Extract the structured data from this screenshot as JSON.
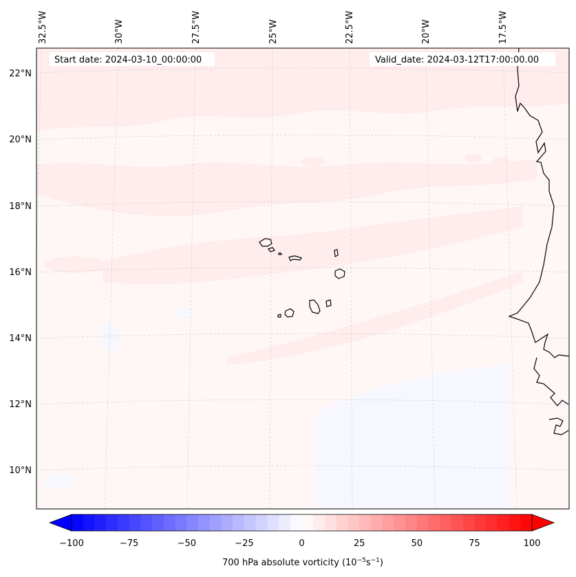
{
  "header": {
    "start_date": "Start date: 2024-03-10_00:00:00",
    "valid_date": "Valid_date: 2024-03-12T17:00:00.00"
  },
  "map": {
    "lon_labels": [
      "32.5°W",
      "30°W",
      "27.5°W",
      "25°W",
      "22.5°W",
      "20°W",
      "17.5°W"
    ],
    "lat_labels": [
      "22°N",
      "20°N",
      "18°N",
      "16°N",
      "14°N",
      "12°N",
      "10°N"
    ],
    "gridlines": "dashed-gray",
    "field_colors": {
      "light_red": "#ffeced",
      "faint_red": "#fff6f6",
      "faint_blue": "#f6f7ff"
    }
  },
  "colorbar": {
    "ticks": [
      "−100",
      "−75",
      "−50",
      "−25",
      "0",
      "25",
      "50",
      "75",
      "100"
    ],
    "label_main": "700 hPa absolute vorticity (10",
    "label_exp1": "−5",
    "label_mid": "s",
    "label_exp2": "−1",
    "label_end": ")",
    "min": -100,
    "max": 100,
    "levels": 40,
    "neg_color": "#0000ff",
    "pos_color": "#ff0000",
    "extend": "both"
  }
}
